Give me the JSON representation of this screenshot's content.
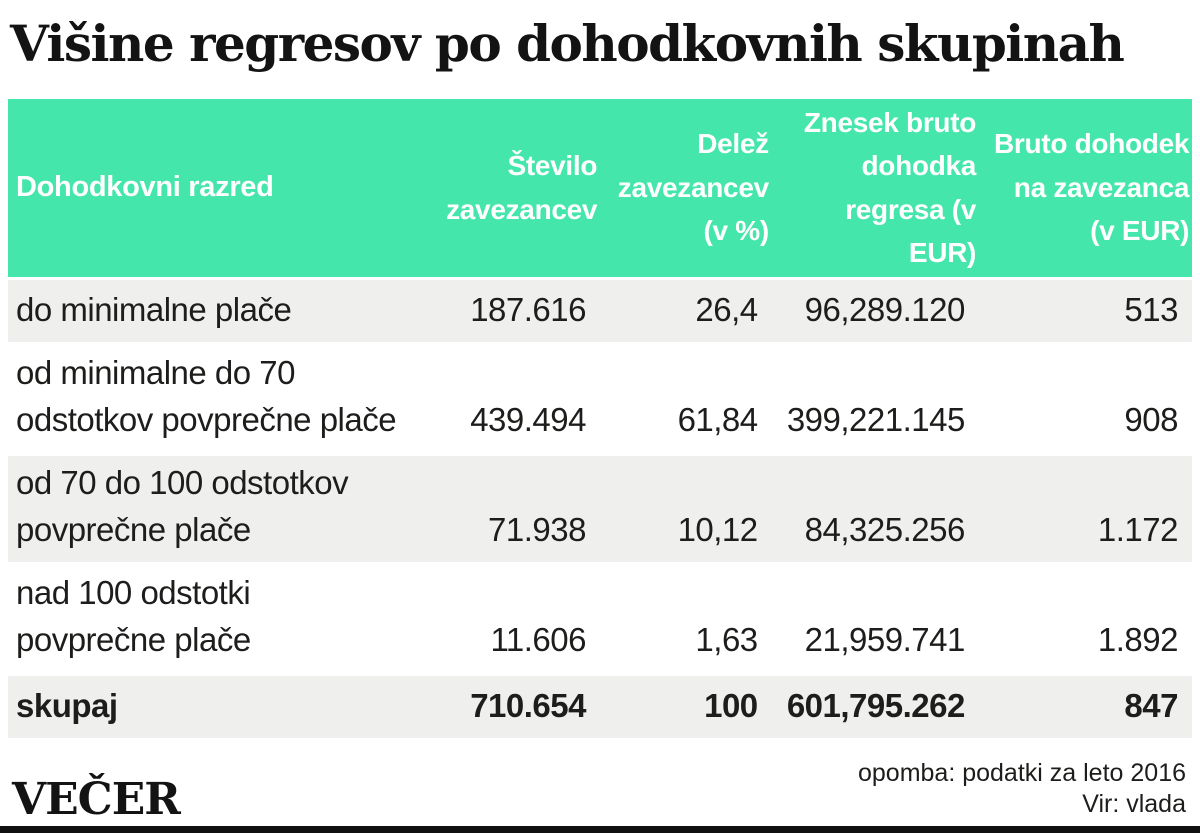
{
  "colors": {
    "header_bg": "#45e6ac",
    "row_alt_bg": "#efefed",
    "header_text": "#ffffff",
    "body_text": "#1d1d1b",
    "bottom_bar": "#101010"
  },
  "brand": {
    "logo_text": "VEČER"
  },
  "chart_data": {
    "type": "table",
    "title": "Višine regresov po dohodkovnih skupinah",
    "columns": [
      {
        "label": "Dohodkovni razred",
        "align": "left"
      },
      {
        "label": "Število\nzavezancev",
        "align": "right"
      },
      {
        "label": "Delež\nzavezancev\n(v %)",
        "align": "right"
      },
      {
        "label": "Znesek bruto\ndohodka\nregresa (v EUR)",
        "align": "right"
      },
      {
        "label": "Bruto dohodek\nna zavezanca\n(v EUR)",
        "align": "right"
      }
    ],
    "rows": [
      {
        "label": "do minimalne plače",
        "cells": [
          "187.616",
          "26,4",
          "96,289.120",
          "513"
        ],
        "emphasis": false
      },
      {
        "label": "od minimalne do 70\nodstotkov povprečne plače",
        "cells": [
          "439.494",
          "61,84",
          "399,221.145",
          "908"
        ],
        "emphasis": false
      },
      {
        "label": "od 70 do 100 odstotkov\npovprečne plače",
        "cells": [
          "71.938",
          "10,12",
          "84,325.256",
          "1.172"
        ],
        "emphasis": false
      },
      {
        "label": "nad 100 odstotki\npovprečne plače",
        "cells": [
          "11.606",
          "1,63",
          "21,959.741",
          "1.892"
        ],
        "emphasis": false
      },
      {
        "label": "skupaj",
        "cells": [
          "710.654",
          "100",
          "601,795.262",
          "847"
        ],
        "emphasis": true
      }
    ],
    "note": "opomba: podatki za leto 2016",
    "source": "Vir: vlada"
  }
}
